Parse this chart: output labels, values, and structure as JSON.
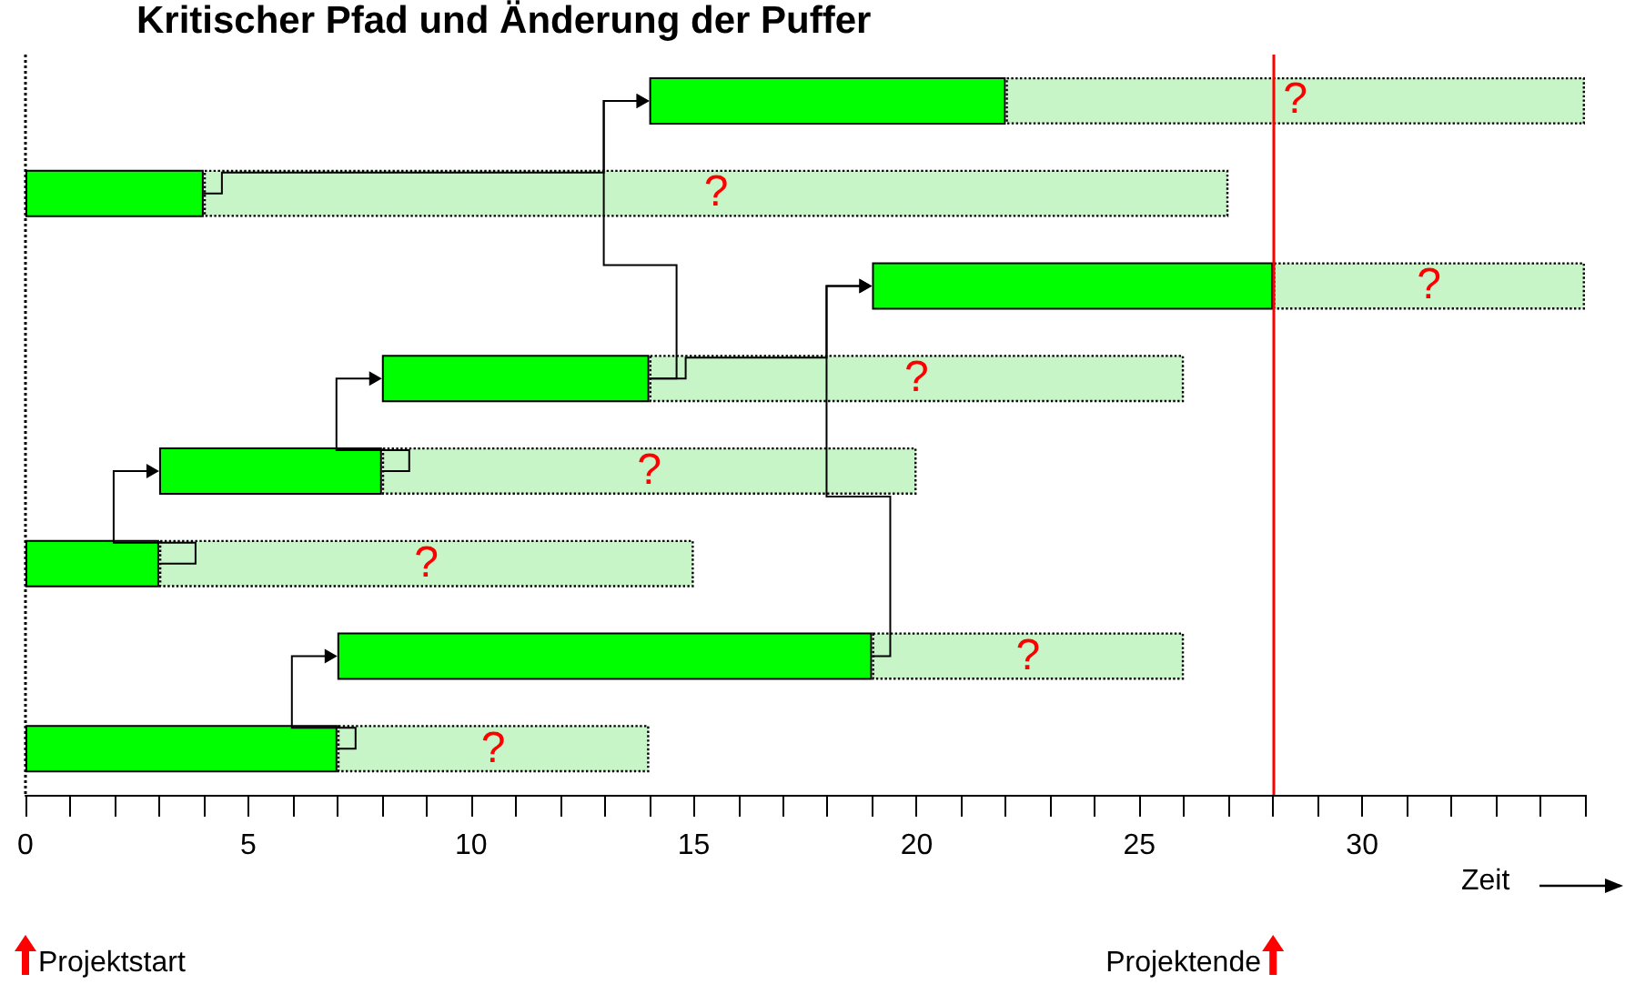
{
  "chart_data": {
    "type": "bar",
    "orientation": "horizontal",
    "title": "Kritischer Pfad und Änderung der Puffer",
    "xlabel": "Zeit",
    "categories": [
      null,
      null,
      null,
      null,
      null,
      null,
      null,
      null
    ],
    "series": [
      {
        "color": "#00ff00",
        "base": [
          14,
          0,
          19,
          8,
          3,
          0,
          7,
          0
        ],
        "values": [
          8,
          4,
          9,
          6,
          5,
          3,
          12,
          7
        ]
      },
      {
        "color": "#c8f5c8",
        "base": [
          22,
          4,
          28,
          14,
          8,
          3,
          19,
          7
        ],
        "values": [
          13,
          23,
          7,
          12,
          12,
          12,
          7,
          7
        ]
      }
    ],
    "xlim": [
      0,
      35
    ],
    "xticks": [
      0,
      {
        "value": 1,
        "label": null
      },
      {
        "value": 2,
        "label": null
      },
      {
        "value": 3,
        "label": null
      },
      {
        "value": 4,
        "label": null
      },
      5,
      {
        "value": 6,
        "label": null
      },
      {
        "value": 7,
        "label": null
      },
      {
        "value": 8,
        "label": null
      },
      {
        "value": 9,
        "label": null
      },
      10,
      {
        "value": 11,
        "label": null
      },
      {
        "value": 12,
        "label": null
      },
      {
        "value": 13,
        "label": null
      },
      {
        "value": 14,
        "label": null
      },
      15,
      {
        "value": 16,
        "label": null
      },
      {
        "value": 17,
        "label": null
      },
      {
        "value": 18,
        "label": null
      },
      {
        "value": 19,
        "label": null
      },
      20,
      {
        "value": 21,
        "label": null
      },
      {
        "value": 22,
        "label": null
      },
      {
        "value": 23,
        "label": null
      },
      {
        "value": 24,
        "label": null
      },
      25,
      {
        "value": 26,
        "label": null
      },
      {
        "value": 27,
        "label": null
      },
      {
        "value": 28,
        "label": null
      },
      {
        "value": 29,
        "label": null
      },
      30,
      {
        "value": 31,
        "label": null
      },
      {
        "value": 32,
        "label": null
      },
      {
        "value": 33,
        "label": null
      },
      {
        "value": 34,
        "label": null
      },
      {
        "value": 35,
        "label": null
      }
    ],
    "ref_lines": [
      {
        "axis": "x",
        "value": 0,
        "color": "#000000",
        "line_style": "dotted"
      },
      {
        "axis": "x",
        "value": 28,
        "color": "#ff0000",
        "line_style": "solid"
      }
    ],
    "annotations": [
      "?",
      "?",
      "?",
      "?",
      "?",
      "?",
      "?",
      "?",
      "Projektstart",
      "Projektende"
    ]
  }
}
